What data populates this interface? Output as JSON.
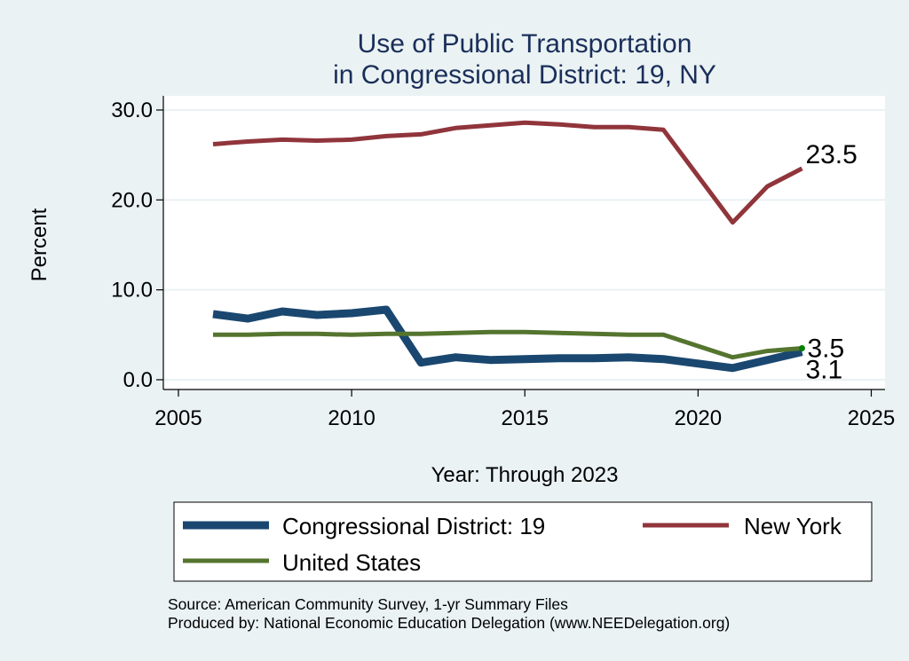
{
  "chart_data": {
    "type": "line",
    "title": [
      "Use of Public Transportation",
      "in Congressional District: 19, NY"
    ],
    "xlabel": "Year: Through 2023",
    "ylabel": "Percent",
    "xlim": [
      2005,
      2025
    ],
    "ylim": [
      0,
      30
    ],
    "xticks": [
      2005,
      2010,
      2015,
      2020,
      2025
    ],
    "xtick_labels": [
      "2005",
      "2010",
      "2015",
      "2020",
      "2025"
    ],
    "yticks": [
      0,
      10,
      20,
      30
    ],
    "ytick_labels": [
      "0.0",
      "10.0",
      "20.0",
      "30.0"
    ],
    "grid": true,
    "legend_position": "bottom",
    "x": [
      2006,
      2007,
      2008,
      2009,
      2010,
      2011,
      2012,
      2013,
      2014,
      2015,
      2016,
      2017,
      2018,
      2019,
      2021,
      2022,
      2023
    ],
    "series": [
      {
        "name": "Congressional District: 19",
        "color": "#1a476f",
        "values": [
          7.3,
          6.8,
          7.6,
          7.2,
          7.4,
          7.8,
          1.9,
          2.5,
          2.2,
          2.3,
          2.4,
          2.4,
          2.5,
          2.3,
          1.3,
          2.2,
          3.1
        ],
        "end_label": "3.1"
      },
      {
        "name": "New York",
        "color": "#90353b",
        "values": [
          26.2,
          26.5,
          26.7,
          26.6,
          26.7,
          27.1,
          27.3,
          28.0,
          28.3,
          28.6,
          28.4,
          28.1,
          28.1,
          27.8,
          17.5,
          21.5,
          23.5
        ],
        "end_label": "23.5"
      },
      {
        "name": "United States",
        "color": "#55752f",
        "values": [
          5.0,
          5.0,
          5.1,
          5.1,
          5.0,
          5.1,
          5.1,
          5.2,
          5.3,
          5.3,
          5.2,
          5.1,
          5.0,
          5.0,
          2.5,
          3.2,
          3.5
        ],
        "end_label": "3.5"
      }
    ],
    "notes": [
      "Source: American Community Survey, 1-yr Summary Files",
      "Produced by: National Economic Education Delegation (www.NEEDelegation.org)"
    ]
  }
}
